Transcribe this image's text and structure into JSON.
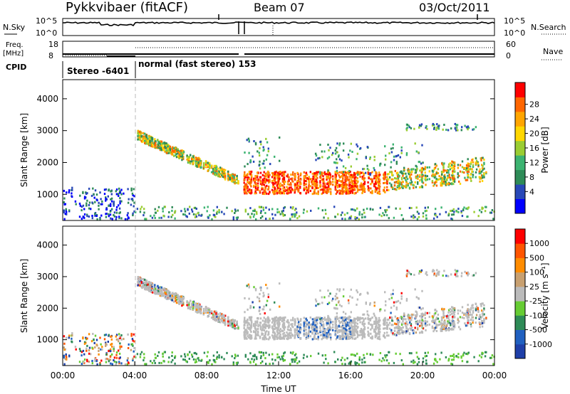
{
  "header": {
    "station": "Pykkvibaer (fitACF)",
    "beam": "Beam 07",
    "date": "03/Oct/2011"
  },
  "top_panels": {
    "nsky_label": "N.Sky",
    "nsearch_label": "N.Search",
    "noise_ticks": [
      "10^5",
      "10^0"
    ],
    "freq_label": "Freq.",
    "freq_unit": "[MHz]",
    "freq_ticks": [
      "18",
      "8"
    ],
    "nave_label": "Nave",
    "nave_ticks": [
      "60",
      "0"
    ],
    "cpid_label": "CPID",
    "cpid_segments": [
      {
        "label": "Stereo -6401",
        "start_hour": 0,
        "end_hour": 4
      },
      {
        "label": "normal (fast stereo) 153",
        "start_hour": 4,
        "end_hour": 24
      }
    ]
  },
  "chart_data": [
    {
      "type": "heatmap",
      "name": "power",
      "ylabel": "Slant Range [km]",
      "xlim": [
        0,
        24
      ],
      "ylim": [
        180,
        4600
      ],
      "yticks": [
        "1000",
        "2000",
        "3000",
        "4000"
      ],
      "colorbar": {
        "label": "Power [dB]",
        "ticks": [
          "4",
          "8",
          "12",
          "16",
          "20",
          "24",
          "28"
        ],
        "colors": [
          "#0000ff",
          "#2848b8",
          "#2e8b57",
          "#3cb371",
          "#9acd32",
          "#ffd700",
          "#ffa500",
          "#ff6600",
          "#ff0000"
        ]
      }
    },
    {
      "type": "heatmap",
      "name": "velocity",
      "ylabel": "Slant Range [km]",
      "xlabel": "Time UT",
      "xlim": [
        0,
        24
      ],
      "ylim": [
        180,
        4600
      ],
      "yticks": [
        "1000",
        "2000",
        "3000",
        "4000"
      ],
      "xticks": [
        "00:00",
        "04:00",
        "08:00",
        "12:00",
        "16:00",
        "20:00",
        "00:00"
      ],
      "colorbar": {
        "label": "Velocity [m s⁻¹]",
        "ticks": [
          "1000",
          "500",
          "100",
          "25",
          "-25",
          "-100",
          "-500",
          "-1000"
        ],
        "colors": [
          "#1e3fa8",
          "#2060c0",
          "#2e8b57",
          "#66cc33",
          "#bbbbbb",
          "#c8a070",
          "#ff8c00",
          "#ff5500",
          "#ff0000"
        ]
      }
    }
  ]
}
